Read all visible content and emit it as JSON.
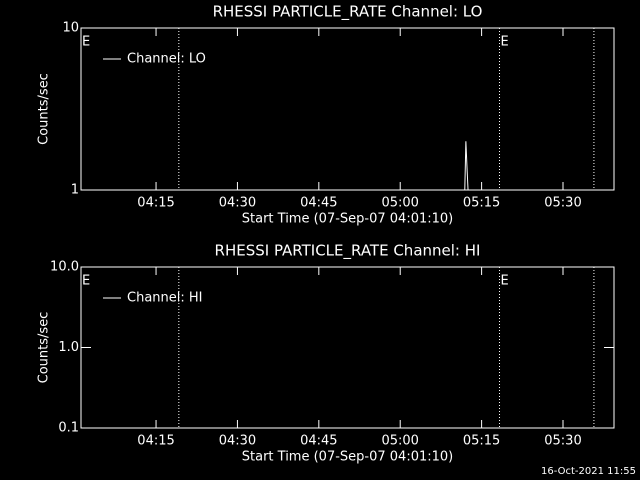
{
  "chart_data": [
    {
      "type": "line",
      "title": "RHESSI PARTICLE_RATE Channel: LO",
      "xlabel": "Start Time (07-Sep-07 04:01:10)",
      "ylabel": "Counts/sec",
      "log_y": true,
      "ylim": [
        1,
        10
      ],
      "yticks": [
        1,
        10
      ],
      "xlim": [
        1.17,
        99.4
      ],
      "xticks": [
        {
          "value": 15,
          "label": "04:15"
        },
        {
          "value": 30,
          "label": "04:30"
        },
        {
          "value": 45,
          "label": "04:45"
        },
        {
          "value": 60,
          "label": "05:00"
        },
        {
          "value": 75,
          "label": "05:15"
        },
        {
          "value": 90,
          "label": "05:30"
        }
      ],
      "vlines": [
        19.2,
        78.3,
        95.7
      ],
      "annotations": [
        {
          "text": "E",
          "x": 1.17
        },
        {
          "text": "E",
          "x": 78.3
        }
      ],
      "legend": "upper left",
      "series": [
        {
          "name": "Channel: LO",
          "color": "#ffffff",
          "x": [
            71.9,
            72.1,
            72.3,
            72.5
          ],
          "values": [
            1.0,
            2.0,
            1.4,
            1.0
          ]
        }
      ]
    },
    {
      "type": "line",
      "title": "RHESSI PARTICLE_RATE Channel: HI",
      "xlabel": "Start Time (07-Sep-07 04:01:10)",
      "ylabel": "Counts/sec",
      "log_y": true,
      "ylim": [
        0.1,
        10
      ],
      "yticks": [
        0.1,
        {
          "value": 1,
          "label": "1.0"
        },
        {
          "value": 10,
          "label": "10.0"
        }
      ],
      "xlim": [
        1.17,
        99.4
      ],
      "xticks": [
        {
          "value": 15,
          "label": "04:15"
        },
        {
          "value": 30,
          "label": "04:30"
        },
        {
          "value": 45,
          "label": "04:45"
        },
        {
          "value": 60,
          "label": "05:00"
        },
        {
          "value": 75,
          "label": "05:15"
        },
        {
          "value": 90,
          "label": "05:30"
        }
      ],
      "vlines": [
        19.2,
        78.3,
        95.7
      ],
      "annotations": [
        {
          "text": "E",
          "x": 1.17
        },
        {
          "text": "E",
          "x": 78.3
        }
      ],
      "legend": "upper left",
      "series": [
        {
          "name": "Channel: HI",
          "color": "#ffffff",
          "x": [],
          "values": []
        }
      ]
    }
  ],
  "footer": "16-Oct-2021 11:55"
}
